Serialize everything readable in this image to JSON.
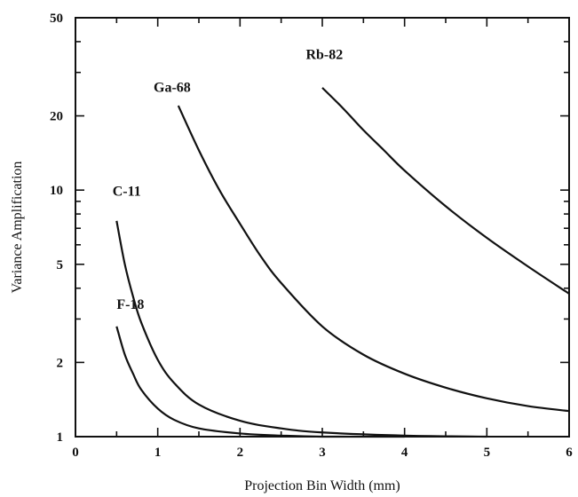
{
  "chart_data": {
    "type": "line",
    "xlabel": "Projection Bin Width (mm)",
    "ylabel": "Variance Amplification",
    "xlim": [
      0,
      6
    ],
    "ylim": [
      1,
      50
    ],
    "yscale": "log",
    "grid": false,
    "x_ticks": [
      0,
      1,
      2,
      3,
      4,
      5,
      6
    ],
    "x_tick_labels": [
      "0",
      "1",
      "2",
      "3",
      "4",
      "5",
      "6"
    ],
    "x_minor_ticks": [
      0.5,
      1.5,
      2.5,
      3.5,
      4.5,
      5.5
    ],
    "y_ticks": [
      1,
      2,
      5,
      10,
      20,
      50
    ],
    "y_tick_labels": [
      "1",
      "2",
      "5",
      "10",
      "20",
      "50"
    ],
    "series": [
      {
        "name": "F-18",
        "x": [
          0.5,
          0.6,
          0.7,
          0.8,
          1.0,
          1.2,
          1.5,
          2.0,
          2.5,
          3.0,
          4.0
        ],
        "y": [
          2.8,
          2.15,
          1.8,
          1.55,
          1.3,
          1.17,
          1.08,
          1.03,
          1.01,
          1.0,
          1.0
        ]
      },
      {
        "name": "C-11",
        "x": [
          0.5,
          0.6,
          0.7,
          0.8,
          1.0,
          1.2,
          1.5,
          2.0,
          2.5,
          3.0,
          4.0,
          5.0
        ],
        "y": [
          7.5,
          5.0,
          3.7,
          2.9,
          2.05,
          1.65,
          1.35,
          1.16,
          1.08,
          1.04,
          1.01,
          1.0
        ]
      },
      {
        "name": "Ga-68",
        "x": [
          1.25,
          1.5,
          1.75,
          2.0,
          2.25,
          2.5,
          3.0,
          3.5,
          4.0,
          4.5,
          5.0,
          5.5,
          6.0
        ],
        "y": [
          22.0,
          14.5,
          10.0,
          7.3,
          5.4,
          4.2,
          2.8,
          2.15,
          1.8,
          1.58,
          1.43,
          1.33,
          1.27
        ]
      },
      {
        "name": "Rb-82",
        "x": [
          3.0,
          3.25,
          3.5,
          3.75,
          4.0,
          4.5,
          5.0,
          5.5,
          6.0
        ],
        "y": [
          26.0,
          21.5,
          17.5,
          14.5,
          12.0,
          8.6,
          6.4,
          4.9,
          3.8
        ]
      }
    ],
    "curve_labels": [
      {
        "text": "F-18",
        "x": 0.5,
        "y": 3.3
      },
      {
        "text": "C-11",
        "x": 0.45,
        "y": 9.5
      },
      {
        "text": "Ga-68",
        "x": 0.95,
        "y": 25.0
      },
      {
        "text": "Rb-82",
        "x": 2.8,
        "y": 34.0
      }
    ]
  }
}
